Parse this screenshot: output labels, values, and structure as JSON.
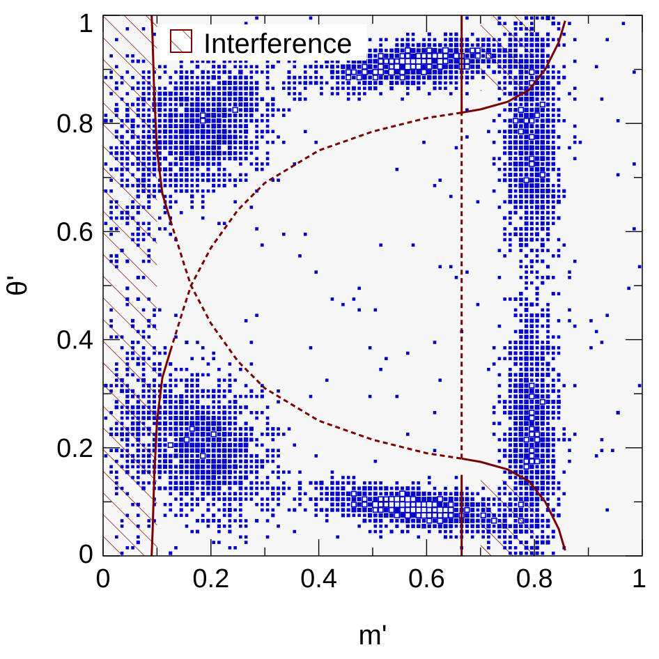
{
  "chart_data": {
    "type": "heatmap",
    "xlabel": "m'",
    "ylabel": "θ'",
    "xlim": [
      0,
      1
    ],
    "ylim": [
      0,
      1
    ],
    "x_ticks": [
      "0",
      "0.2",
      "0.4",
      "0.6",
      "0.8",
      "1"
    ],
    "y_ticks": [
      "0",
      "0.2",
      "0.4",
      "0.6",
      "0.8",
      "1"
    ],
    "legend": {
      "position": "top-left",
      "entries": [
        {
          "label": "Interference",
          "style": "hatched"
        }
      ]
    },
    "colors": {
      "bins": "#0000c8",
      "curves": "#7a0000",
      "plot_bg": "#f7f7f7"
    },
    "clusters": [
      {
        "cx": 0.19,
        "cy": 0.8,
        "sx": 0.055,
        "sy": 0.07,
        "n": 1400,
        "rot": -0.6
      },
      {
        "cx": 0.19,
        "cy": 0.2,
        "sx": 0.055,
        "sy": 0.07,
        "n": 1400,
        "rot": 0.6
      },
      {
        "cx": 0.58,
        "cy": 0.91,
        "sx": 0.09,
        "sy": 0.018,
        "n": 1500,
        "rot": 0.12
      },
      {
        "cx": 0.58,
        "cy": 0.09,
        "sx": 0.09,
        "sy": 0.018,
        "n": 1500,
        "rot": -0.12
      },
      {
        "cx": 0.795,
        "cy": 0.78,
        "sx": 0.025,
        "sy": 0.12,
        "n": 1400,
        "rot": 0
      },
      {
        "cx": 0.795,
        "cy": 0.22,
        "sx": 0.025,
        "sy": 0.12,
        "n": 1400,
        "rot": 0
      },
      {
        "cx": 0.06,
        "cy": 0.74,
        "sx": 0.03,
        "sy": 0.1,
        "n": 300,
        "rot": 0
      },
      {
        "cx": 0.06,
        "cy": 0.26,
        "sx": 0.03,
        "sy": 0.1,
        "n": 300,
        "rot": 0
      }
    ],
    "curves": [
      {
        "name": "solid-left",
        "style": "solid",
        "points": [
          [
            0.09,
            0.0
          ],
          [
            0.092,
            0.05
          ],
          [
            0.095,
            0.15
          ],
          [
            0.1,
            0.25
          ],
          [
            0.11,
            0.33
          ],
          [
            0.125,
            0.38
          ]
        ]
      },
      {
        "name": "solid-left-upper",
        "style": "solid",
        "points": [
          [
            0.09,
            1.0
          ],
          [
            0.092,
            0.95
          ],
          [
            0.095,
            0.85
          ],
          [
            0.1,
            0.75
          ],
          [
            0.11,
            0.67
          ],
          [
            0.125,
            0.62
          ]
        ]
      },
      {
        "name": "dashed-upper",
        "style": "dashed",
        "points": [
          [
            0.125,
            0.38
          ],
          [
            0.15,
            0.46
          ],
          [
            0.163,
            0.5
          ],
          [
            0.2,
            0.57
          ],
          [
            0.25,
            0.64
          ],
          [
            0.3,
            0.69
          ],
          [
            0.4,
            0.75
          ],
          [
            0.5,
            0.785
          ],
          [
            0.6,
            0.81
          ],
          [
            0.665,
            0.82
          ]
        ]
      },
      {
        "name": "dashed-lower",
        "style": "dashed",
        "points": [
          [
            0.125,
            0.62
          ],
          [
            0.15,
            0.54
          ],
          [
            0.163,
            0.5
          ],
          [
            0.2,
            0.43
          ],
          [
            0.25,
            0.36
          ],
          [
            0.3,
            0.31
          ],
          [
            0.4,
            0.25
          ],
          [
            0.5,
            0.215
          ],
          [
            0.6,
            0.19
          ],
          [
            0.665,
            0.18
          ]
        ]
      },
      {
        "name": "solid-right-upper",
        "style": "solid",
        "points": [
          [
            0.665,
            0.82
          ],
          [
            0.7,
            0.826
          ],
          [
            0.75,
            0.84
          ],
          [
            0.79,
            0.862
          ],
          [
            0.82,
            0.9
          ],
          [
            0.845,
            0.95
          ],
          [
            0.857,
            0.99
          ]
        ]
      },
      {
        "name": "solid-right-lower",
        "style": "solid",
        "points": [
          [
            0.665,
            0.18
          ],
          [
            0.7,
            0.174
          ],
          [
            0.75,
            0.16
          ],
          [
            0.79,
            0.138
          ],
          [
            0.82,
            0.1
          ],
          [
            0.845,
            0.05
          ],
          [
            0.857,
            0.01
          ]
        ]
      },
      {
        "name": "vertical-solid-top",
        "style": "solid",
        "points": [
          [
            0.665,
            0.82
          ],
          [
            0.665,
            1.0
          ]
        ]
      },
      {
        "name": "vertical-dashed",
        "style": "dashed",
        "points": [
          [
            0.665,
            0.18
          ],
          [
            0.665,
            0.82
          ]
        ]
      },
      {
        "name": "vertical-solid-bottom",
        "style": "solid",
        "points": [
          [
            0.665,
            0.0
          ],
          [
            0.665,
            0.15
          ]
        ]
      }
    ],
    "interference_regions": [
      {
        "x": [
          0.0,
          0.1
        ],
        "y": [
          0.0,
          1.0
        ]
      },
      {
        "x": [
          0.7,
          0.8
        ],
        "y": [
          0.86,
          1.0
        ]
      },
      {
        "x": [
          0.7,
          0.8
        ],
        "y": [
          0.0,
          0.14
        ]
      }
    ]
  }
}
